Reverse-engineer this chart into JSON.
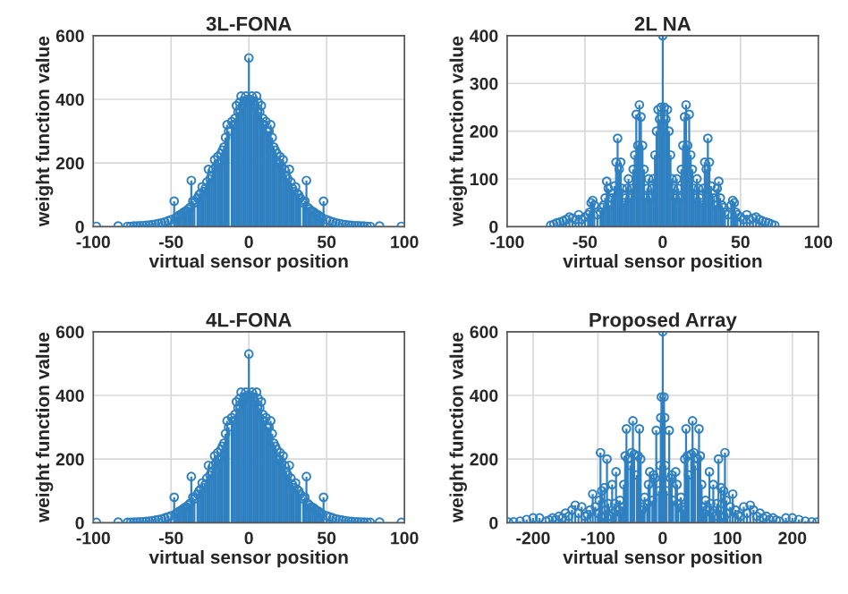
{
  "chart_data": [
    {
      "type": "lollipop",
      "title": "3L-FONA",
      "xlabel": "virtual sensor position",
      "ylabel": "weight function value",
      "color": "#2f80c0",
      "marker": "circle",
      "grid": true,
      "xlim": [
        -100,
        100
      ],
      "xticks": [
        -100,
        -50,
        0,
        50,
        100
      ],
      "ylim": [
        0,
        600
      ],
      "yticks": [
        0,
        200,
        400,
        600
      ],
      "x": [
        -98,
        -84,
        -78,
        -76,
        -74,
        -72,
        -70,
        -68,
        -66,
        -64,
        -62,
        -60,
        -58,
        -56,
        -54,
        -52,
        -50,
        -48,
        -47,
        -46,
        -45,
        -44,
        -43,
        -42,
        -41,
        -40,
        -39,
        -38,
        -37,
        -36,
        -35,
        -33,
        -32,
        -31,
        -30,
        -29,
        -28,
        -27,
        -26,
        -25,
        -24,
        -23,
        -22,
        -21,
        -20,
        -19,
        -18,
        -17,
        -16,
        -15,
        -14,
        -13,
        -11,
        -10,
        -9,
        -8,
        -7,
        -6,
        -5,
        -4,
        -3,
        -2,
        -1,
        0,
        1,
        2,
        3,
        4,
        5,
        6,
        7,
        8,
        9,
        10,
        11,
        12,
        13,
        14,
        15,
        16,
        17,
        18,
        19,
        20,
        21,
        22,
        23,
        24,
        25,
        26,
        27,
        28,
        29,
        30,
        31,
        32,
        33,
        35,
        36,
        37,
        38,
        39,
        40,
        41,
        42,
        43,
        44,
        45,
        46,
        47,
        48,
        50,
        52,
        54,
        56,
        58,
        60,
        62,
        64,
        66,
        68,
        70,
        72,
        74,
        76,
        78,
        84,
        98
      ],
      "values": [
        1,
        2,
        1,
        1,
        2,
        2,
        3,
        3,
        4,
        5,
        6,
        8,
        10,
        12,
        15,
        18,
        22,
        80,
        28,
        30,
        35,
        38,
        40,
        45,
        48,
        50,
        55,
        60,
        145,
        80,
        75,
        90,
        100,
        105,
        125,
        110,
        120,
        140,
        180,
        150,
        160,
        180,
        210,
        190,
        220,
        200,
        230,
        240,
        250,
        280,
        320,
        300,
        330,
        320,
        340,
        380,
        360,
        390,
        410,
        380,
        395,
        410,
        400,
        530,
        400,
        410,
        395,
        380,
        410,
        390,
        360,
        380,
        340,
        320,
        330,
        300,
        300,
        320,
        280,
        250,
        240,
        230,
        200,
        220,
        190,
        210,
        180,
        160,
        150,
        180,
        140,
        120,
        110,
        125,
        105,
        100,
        90,
        75,
        80,
        145,
        60,
        55,
        50,
        48,
        45,
        40,
        38,
        35,
        30,
        28,
        80,
        22,
        18,
        15,
        12,
        10,
        8,
        6,
        5,
        4,
        3,
        3,
        2,
        2,
        1,
        1,
        2,
        1
      ]
    },
    {
      "type": "lollipop",
      "title": "2L NA",
      "xlabel": "virtual sensor position",
      "ylabel": "weight function value",
      "color": "#2f80c0",
      "marker": "circle",
      "grid": true,
      "xlim": [
        -100,
        100
      ],
      "xticks": [
        -100,
        -50,
        0,
        50,
        100
      ],
      "ylim": [
        0,
        400
      ],
      "yticks": [
        0,
        100,
        200,
        300,
        400
      ],
      "x": [
        -72,
        -70,
        -68,
        -66,
        -64,
        -62,
        -60,
        -58,
        -56,
        -54,
        -52,
        -50,
        -48,
        -47,
        -46,
        -45,
        -44,
        -42,
        -40,
        -39,
        -38,
        -37,
        -36,
        -35,
        -34,
        -33,
        -32,
        -31,
        -30,
        -29,
        -28,
        -27,
        -26,
        -25,
        -24,
        -23,
        -22,
        -21,
        -20,
        -19,
        -18,
        -17,
        -16,
        -15,
        -14,
        -13,
        -12,
        -11,
        -10,
        -9,
        -8,
        -7,
        -6,
        -5,
        -4,
        -3,
        -2,
        -1,
        0,
        1,
        2,
        3,
        4,
        5,
        6,
        7,
        8,
        9,
        10,
        11,
        12,
        13,
        14,
        15,
        16,
        17,
        18,
        19,
        20,
        21,
        22,
        23,
        24,
        25,
        26,
        27,
        28,
        29,
        30,
        31,
        32,
        33,
        34,
        35,
        36,
        37,
        38,
        39,
        40,
        42,
        44,
        45,
        46,
        47,
        48,
        50,
        52,
        54,
        56,
        58,
        60,
        62,
        64,
        66,
        68,
        70,
        72
      ],
      "values": [
        3,
        5,
        8,
        10,
        12,
        15,
        20,
        18,
        15,
        25,
        15,
        20,
        25,
        30,
        50,
        55,
        45,
        25,
        30,
        40,
        45,
        60,
        95,
        80,
        45,
        60,
        70,
        85,
        135,
        185,
        120,
        135,
        80,
        50,
        60,
        80,
        100,
        60,
        80,
        120,
        150,
        235,
        170,
        255,
        230,
        170,
        120,
        60,
        80,
        100,
        60,
        80,
        100,
        150,
        200,
        245,
        225,
        250,
        400,
        250,
        225,
        245,
        200,
        150,
        100,
        80,
        60,
        100,
        80,
        60,
        120,
        170,
        230,
        255,
        170,
        235,
        150,
        120,
        80,
        60,
        100,
        80,
        60,
        50,
        80,
        135,
        120,
        185,
        135,
        85,
        70,
        60,
        45,
        80,
        95,
        60,
        45,
        40,
        30,
        25,
        45,
        55,
        50,
        30,
        25,
        20,
        15,
        25,
        15,
        18,
        20,
        15,
        12,
        10,
        8,
        5,
        3
      ]
    },
    {
      "type": "lollipop",
      "title": "4L-FONA",
      "xlabel": "virtual sensor position",
      "ylabel": "weight function value",
      "color": "#2f80c0",
      "marker": "circle",
      "grid": true,
      "xlim": [
        -100,
        100
      ],
      "xticks": [
        -100,
        -50,
        0,
        50,
        100
      ],
      "ylim": [
        0,
        600
      ],
      "yticks": [
        0,
        200,
        400,
        600
      ],
      "x": [
        -98,
        -84,
        -78,
        -76,
        -74,
        -72,
        -70,
        -68,
        -66,
        -64,
        -62,
        -60,
        -58,
        -56,
        -54,
        -52,
        -50,
        -48,
        -47,
        -46,
        -45,
        -44,
        -43,
        -42,
        -41,
        -40,
        -39,
        -38,
        -37,
        -36,
        -35,
        -33,
        -32,
        -31,
        -30,
        -29,
        -28,
        -27,
        -26,
        -25,
        -24,
        -23,
        -22,
        -21,
        -20,
        -19,
        -18,
        -17,
        -16,
        -15,
        -14,
        -13,
        -11,
        -10,
        -9,
        -8,
        -7,
        -6,
        -5,
        -4,
        -3,
        -2,
        -1,
        0,
        1,
        2,
        3,
        4,
        5,
        6,
        7,
        8,
        9,
        10,
        11,
        12,
        13,
        14,
        15,
        16,
        17,
        18,
        19,
        20,
        21,
        22,
        23,
        24,
        25,
        26,
        27,
        28,
        29,
        30,
        31,
        32,
        33,
        35,
        36,
        37,
        38,
        39,
        40,
        41,
        42,
        43,
        44,
        45,
        46,
        47,
        48,
        50,
        52,
        54,
        56,
        58,
        60,
        62,
        64,
        66,
        68,
        70,
        72,
        74,
        76,
        78,
        84,
        98
      ],
      "values": [
        1,
        2,
        1,
        1,
        2,
        2,
        3,
        3,
        4,
        5,
        6,
        8,
        10,
        12,
        15,
        18,
        22,
        80,
        28,
        30,
        35,
        38,
        40,
        45,
        48,
        50,
        55,
        60,
        145,
        80,
        75,
        90,
        100,
        105,
        125,
        110,
        120,
        140,
        180,
        150,
        160,
        180,
        210,
        190,
        220,
        200,
        230,
        240,
        250,
        280,
        320,
        300,
        330,
        320,
        340,
        380,
        360,
        390,
        410,
        380,
        395,
        410,
        400,
        530,
        400,
        410,
        395,
        380,
        410,
        390,
        360,
        380,
        340,
        320,
        330,
        300,
        300,
        320,
        280,
        250,
        240,
        230,
        200,
        220,
        190,
        210,
        180,
        160,
        150,
        180,
        140,
        120,
        110,
        125,
        105,
        100,
        90,
        75,
        80,
        145,
        60,
        55,
        50,
        48,
        45,
        40,
        38,
        35,
        30,
        28,
        80,
        22,
        18,
        15,
        12,
        10,
        8,
        6,
        5,
        4,
        3,
        3,
        2,
        2,
        1,
        1,
        2,
        1
      ]
    },
    {
      "type": "lollipop",
      "title": "Proposed Array",
      "xlabel": "virtual sensor position",
      "ylabel": "weight function value",
      "color": "#2f80c0",
      "marker": "circle",
      "grid": true,
      "xlim": [
        -240,
        240
      ],
      "xticks": [
        -200,
        -100,
        0,
        100,
        200
      ],
      "ylim": [
        0,
        600
      ],
      "yticks": [
        0,
        200,
        400,
        600
      ],
      "x": [
        -238,
        -230,
        -220,
        -210,
        -200,
        -190,
        -180,
        -175,
        -170,
        -165,
        -160,
        -155,
        -150,
        -145,
        -140,
        -135,
        -130,
        -125,
        -120,
        -116,
        -112,
        -108,
        -104,
        -100,
        -98,
        -96,
        -94,
        -92,
        -90,
        -88,
        -86,
        -84,
        -80,
        -78,
        -76,
        -74,
        -72,
        -68,
        -66,
        -64,
        -62,
        -60,
        -58,
        -56,
        -54,
        -50,
        -48,
        -46,
        -44,
        -40,
        -38,
        -36,
        -34,
        -32,
        -30,
        -28,
        -24,
        -22,
        -20,
        -16,
        -14,
        -12,
        -10,
        -6,
        -4,
        -3,
        -2,
        0,
        2,
        3,
        4,
        6,
        10,
        12,
        14,
        16,
        20,
        22,
        24,
        28,
        30,
        32,
        34,
        36,
        38,
        40,
        44,
        46,
        48,
        50,
        54,
        56,
        58,
        60,
        62,
        64,
        66,
        68,
        72,
        74,
        76,
        78,
        80,
        84,
        86,
        88,
        90,
        92,
        94,
        96,
        98,
        100,
        104,
        108,
        112,
        116,
        120,
        125,
        130,
        135,
        140,
        145,
        150,
        155,
        160,
        165,
        170,
        175,
        180,
        190,
        200,
        210,
        220,
        230,
        238
      ],
      "values": [
        2,
        3,
        5,
        10,
        15,
        15,
        5,
        8,
        15,
        10,
        20,
        15,
        30,
        20,
        40,
        55,
        30,
        50,
        20,
        25,
        40,
        90,
        50,
        30,
        70,
        220,
        100,
        15,
        110,
        40,
        200,
        60,
        20,
        120,
        30,
        60,
        160,
        40,
        70,
        30,
        50,
        120,
        210,
        295,
        200,
        180,
        220,
        320,
        215,
        150,
        210,
        295,
        200,
        40,
        50,
        80,
        60,
        120,
        160,
        70,
        150,
        140,
        290,
        100,
        180,
        330,
        395,
        600,
        395,
        330,
        180,
        100,
        290,
        140,
        150,
        70,
        160,
        120,
        60,
        80,
        50,
        40,
        200,
        295,
        210,
        150,
        215,
        320,
        220,
        180,
        200,
        295,
        210,
        120,
        50,
        30,
        70,
        40,
        160,
        60,
        30,
        120,
        20,
        60,
        200,
        40,
        110,
        15,
        100,
        220,
        70,
        30,
        50,
        90,
        40,
        25,
        20,
        50,
        30,
        55,
        40,
        20,
        30,
        15,
        20,
        10,
        15,
        8,
        5,
        15,
        15,
        10,
        5,
        3,
        2
      ]
    }
  ]
}
